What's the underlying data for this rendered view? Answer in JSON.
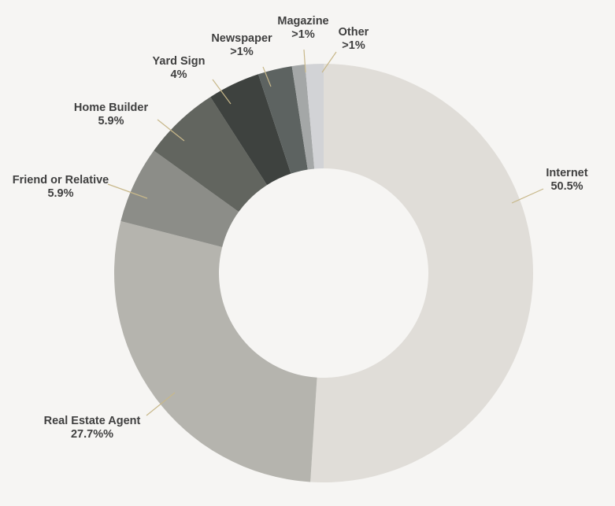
{
  "chart_data": {
    "type": "pie",
    "variant": "donut",
    "title": "",
    "slices": [
      {
        "label": "Internet",
        "display": "50.5%",
        "value": 50.5,
        "color": "#e0ddd8"
      },
      {
        "label": "Real Estate Agent",
        "display": "27.7%%",
        "value": 27.7,
        "color": "#b5b4ae"
      },
      {
        "label": "Friend or Relative",
        "display": "5.9%",
        "value": 5.9,
        "color": "#8c8d88"
      },
      {
        "label": "Home Builder",
        "display": "5.9%",
        "value": 5.9,
        "color": "#62655f"
      },
      {
        "label": "Yard Sign",
        "display": "4%",
        "value": 4,
        "color": "#3e423f"
      },
      {
        "label": "Newspaper",
        "display": ">1%",
        "value": 2.6,
        "color": "#5d6361"
      },
      {
        "label": "Magazine",
        "display": ">1%",
        "value": 1,
        "color": "#a4a7a7"
      },
      {
        "label": "Other",
        "display": ">1%",
        "value": 1.4,
        "color": "#d2d3d6"
      }
    ],
    "leader_line_color": "#c8b88a"
  }
}
